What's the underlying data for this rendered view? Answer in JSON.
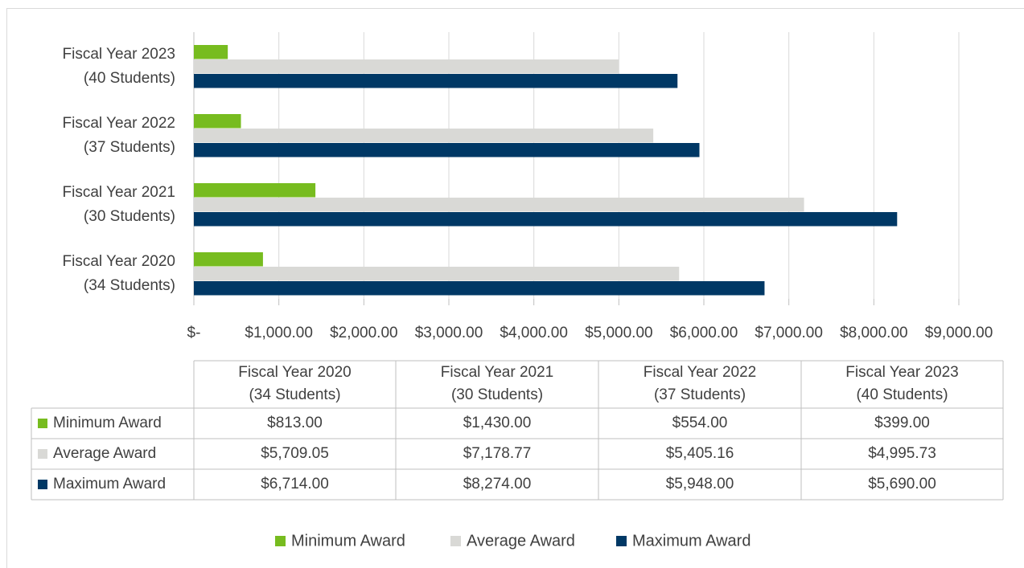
{
  "chart_data": {
    "type": "bar",
    "orientation": "horizontal",
    "categories": [
      [
        "Fiscal Year 2020",
        "(34 Students)"
      ],
      [
        "Fiscal Year 2021",
        "(30 Students)"
      ],
      [
        "Fiscal Year 2022",
        "(37 Students)"
      ],
      [
        "Fiscal Year 2023",
        "(40 Students)"
      ]
    ],
    "series": [
      {
        "name": "Minimum Award",
        "color": "#77bc1f",
        "values": [
          813,
          1430,
          554,
          399
        ],
        "value_labels": [
          "$813.00",
          "$1,430.00",
          "$554.00",
          "$399.00"
        ]
      },
      {
        "name": "Average Award",
        "color": "#d9d9d6",
        "values": [
          5709.05,
          7178.77,
          5405.16,
          4995.73
        ],
        "value_labels": [
          "$5,709.05",
          "$7,178.77",
          "$5,405.16",
          "$4,995.73"
        ]
      },
      {
        "name": "Maximum Award",
        "color": "#003865",
        "values": [
          6714,
          8274,
          5948,
          5690
        ],
        "value_labels": [
          "$6,714.00",
          "$8,274.00",
          "$5,948.00",
          "$5,690.00"
        ]
      }
    ],
    "xlim": [
      0,
      9000
    ],
    "xticks": [
      {
        "value": 0,
        "label": "$-"
      },
      {
        "value": 1000,
        "label": "$1,000.00"
      },
      {
        "value": 2000,
        "label": "$2,000.00"
      },
      {
        "value": 3000,
        "label": "$3,000.00"
      },
      {
        "value": 4000,
        "label": "$4,000.00"
      },
      {
        "value": 5000,
        "label": "$5,000.00"
      },
      {
        "value": 6000,
        "label": "$6,000.00"
      },
      {
        "value": 7000,
        "label": "$7,000.00"
      },
      {
        "value": 8000,
        "label": "$8,000.00"
      },
      {
        "value": 9000,
        "label": "$9,000.00"
      }
    ],
    "grid": true,
    "legend": "bottom",
    "data_table": true
  }
}
